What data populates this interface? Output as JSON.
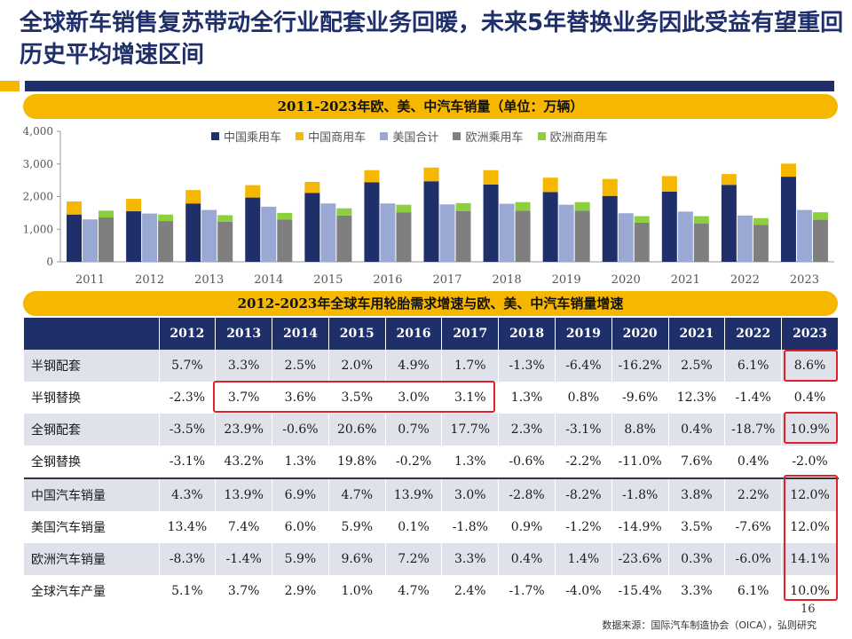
{
  "title": "全球新车销售复苏带动全行业配套业务回暖，未来5年替换业务因此受益有望重回历史平均增速区间",
  "chart_title": "2011-2023年欧、美、中汽车销量（单位：万辆）",
  "table_title": "2012-2023年全球车用轮胎需求增速与欧、美、中汽车销量增速",
  "colors": {
    "navy": "#1f2f6a",
    "gold": "#f5b700",
    "us": "#9aa9d3",
    "eu_pass": "#7f7f7f",
    "eu_comm": "#8dcf3f"
  },
  "chart_data": {
    "type": "bar",
    "title": "2011-2023年欧、美、中汽车销量（单位：万辆）",
    "categories": [
      "2011",
      "2012",
      "2013",
      "2014",
      "2015",
      "2016",
      "2017",
      "2018",
      "2019",
      "2020",
      "2021",
      "2022",
      "2023"
    ],
    "ylim": [
      0,
      4000
    ],
    "yticks": [
      "0",
      "1,000",
      "2,000",
      "3,000",
      "4,000"
    ],
    "stacks": [
      {
        "series": [
          {
            "name": "中国乘用车",
            "color": "#1f2f6a",
            "values": [
              1450,
              1550,
              1790,
              1970,
              2110,
              2440,
              2470,
              2370,
              2140,
              2020,
              2150,
              2360,
              2610
            ]
          },
          {
            "name": "中国商用车",
            "color": "#f5b700",
            "values": [
              400,
              380,
              410,
              380,
              340,
              370,
              420,
              440,
              440,
              520,
              480,
              330,
              400
            ]
          }
        ]
      },
      {
        "series": [
          {
            "name": "美国合计",
            "color": "#9aa9d3",
            "values": [
              1300,
              1480,
              1590,
              1690,
              1790,
              1790,
              1760,
              1780,
              1750,
              1490,
              1540,
              1420,
              1590
            ]
          }
        ]
      },
      {
        "series": [
          {
            "name": "欧洲乘用车",
            "color": "#7f7f7f",
            "values": [
              1360,
              1250,
              1230,
              1300,
              1420,
              1520,
              1560,
              1570,
              1570,
              1200,
              1180,
              1130,
              1290
            ]
          },
          {
            "name": "欧洲商用车",
            "color": "#8dcf3f",
            "values": [
              210,
              200,
              200,
              200,
              220,
              230,
              240,
              260,
              260,
              200,
              220,
              210,
              230
            ]
          }
        ]
      }
    ]
  },
  "legend": [
    {
      "label": "中国乘用车",
      "color": "#1f2f6a"
    },
    {
      "label": "中国商用车",
      "color": "#f5b700"
    },
    {
      "label": "美国合计",
      "color": "#9aa9d3"
    },
    {
      "label": "欧洲乘用车",
      "color": "#7f7f7f"
    },
    {
      "label": "欧洲商用车",
      "color": "#8dcf3f"
    }
  ],
  "table": {
    "years": [
      "2012",
      "2013",
      "2014",
      "2015",
      "2016",
      "2017",
      "2018",
      "2019",
      "2020",
      "2021",
      "2022",
      "2023"
    ],
    "rows": [
      {
        "label": "半钢配套",
        "values": [
          "5.7%",
          "3.3%",
          "2.5%",
          "2.0%",
          "4.9%",
          "1.7%",
          "-1.3%",
          "-6.4%",
          "-16.2%",
          "2.5%",
          "6.1%",
          "8.6%"
        ]
      },
      {
        "label": "半钢替换",
        "values": [
          "-2.3%",
          "3.7%",
          "3.6%",
          "3.5%",
          "3.0%",
          "3.1%",
          "1.3%",
          "0.8%",
          "-9.6%",
          "12.3%",
          "-1.4%",
          "0.4%"
        ]
      },
      {
        "label": "全钢配套",
        "values": [
          "-3.5%",
          "23.9%",
          "-0.6%",
          "20.6%",
          "0.7%",
          "17.7%",
          "2.3%",
          "-3.1%",
          "8.8%",
          "0.4%",
          "-18.7%",
          "10.9%"
        ]
      },
      {
        "label": "全钢替换",
        "values": [
          "-3.1%",
          "43.2%",
          "1.3%",
          "19.8%",
          "-0.2%",
          "1.3%",
          "-0.6%",
          "-2.2%",
          "-11.0%",
          "7.6%",
          "0.4%",
          "-2.0%"
        ]
      },
      {
        "label": "中国汽车销量",
        "values": [
          "4.3%",
          "13.9%",
          "6.9%",
          "4.7%",
          "13.9%",
          "3.0%",
          "-2.8%",
          "-8.2%",
          "-1.8%",
          "3.8%",
          "2.2%",
          "12.0%"
        ]
      },
      {
        "label": "美国汽车销量",
        "values": [
          "13.4%",
          "7.4%",
          "6.0%",
          "5.9%",
          "0.1%",
          "-1.8%",
          "0.9%",
          "-1.2%",
          "-14.9%",
          "3.5%",
          "-7.6%",
          "12.0%"
        ]
      },
      {
        "label": "欧洲汽车销量",
        "values": [
          "-8.3%",
          "-1.4%",
          "5.9%",
          "9.6%",
          "7.2%",
          "3.3%",
          "0.4%",
          "1.4%",
          "-23.6%",
          "0.3%",
          "-6.0%",
          "14.1%"
        ]
      },
      {
        "label": "全球汽车产量",
        "values": [
          "5.1%",
          "3.7%",
          "2.9%",
          "1.0%",
          "4.7%",
          "2.4%",
          "-1.7%",
          "-4.0%",
          "-15.4%",
          "3.3%",
          "6.1%",
          "10.0%"
        ]
      }
    ]
  },
  "source": "数据来源：国际汽车制造协会（OICA），弘则研究",
  "page_number": "16"
}
